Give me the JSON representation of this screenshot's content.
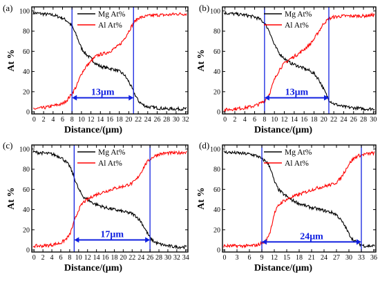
{
  "colors": {
    "mg": "#000000",
    "al": "#ff0000",
    "boundary": "#1020e0",
    "annotation": "#1020e0",
    "frame": "#000000"
  },
  "chart_data": [
    {
      "panel_label": "(a)",
      "type": "line",
      "xlabel": "Distance/(μm)",
      "ylabel": "At %",
      "xlim": [
        -0.5,
        32.5
      ],
      "ylim": [
        -2,
        104
      ],
      "xticks": [
        0,
        2,
        4,
        6,
        8,
        10,
        12,
        14,
        16,
        18,
        20,
        22,
        24,
        26,
        28,
        30,
        32
      ],
      "yticks": [
        0,
        20,
        40,
        60,
        80,
        100
      ],
      "legend": {
        "position": "top-center"
      },
      "boundaries": [
        8,
        21
      ],
      "annotation": {
        "text": "13μm",
        "from": 8,
        "to": 21,
        "y": 14
      },
      "series": [
        {
          "name": "Mg At%",
          "color": "#000000",
          "x": [
            0,
            2,
            4,
            6,
            7,
            8,
            9,
            10,
            11,
            12,
            13,
            14,
            15,
            16,
            17,
            18,
            19,
            20,
            21,
            22,
            23,
            24,
            26,
            28,
            30,
            32
          ],
          "y": [
            98,
            97,
            96,
            93,
            90,
            85,
            75,
            63,
            57,
            53,
            48,
            45,
            44,
            43,
            42,
            40,
            37,
            30,
            20,
            11,
            7,
            5,
            4,
            3,
            3,
            3
          ]
        },
        {
          "name": "Al  At%",
          "color": "#ff0000",
          "x": [
            0,
            2,
            4,
            6,
            7,
            8,
            9,
            10,
            11,
            12,
            13,
            14,
            15,
            16,
            17,
            18,
            19,
            20,
            21,
            22,
            23,
            24,
            26,
            28,
            30,
            32
          ],
          "y": [
            3,
            4,
            6,
            8,
            12,
            18,
            26,
            38,
            45,
            50,
            55,
            57,
            58,
            60,
            63,
            66,
            72,
            80,
            88,
            93,
            94,
            95,
            96,
            96,
            97,
            97
          ]
        }
      ]
    },
    {
      "panel_label": "(b)",
      "type": "line",
      "xlabel": "Distance/(μm)",
      "ylabel": "At %",
      "xlim": [
        -0.5,
        30.5
      ],
      "ylim": [
        -2,
        104
      ],
      "xticks": [
        0,
        2,
        4,
        6,
        8,
        10,
        12,
        14,
        16,
        18,
        20,
        22,
        24,
        26,
        28,
        30
      ],
      "yticks": [
        0,
        20,
        40,
        60,
        80,
        100
      ],
      "legend": {
        "position": "top-center"
      },
      "boundaries": [
        8,
        21
      ],
      "annotation": {
        "text": "13μm",
        "from": 8,
        "to": 21,
        "y": 14
      },
      "series": [
        {
          "name": "Mg At%",
          "color": "#000000",
          "x": [
            0,
            2,
            4,
            6,
            7,
            8,
            9,
            10,
            11,
            12,
            13,
            14,
            15,
            16,
            17,
            18,
            19,
            20,
            21,
            22,
            24,
            26,
            28,
            30
          ],
          "y": [
            98,
            97,
            96,
            94,
            92,
            88,
            80,
            66,
            58,
            53,
            49,
            47,
            45,
            43,
            41,
            38,
            32,
            22,
            12,
            8,
            5,
            4,
            3,
            3
          ]
        },
        {
          "name": "Al  At%",
          "color": "#ff0000",
          "x": [
            0,
            2,
            4,
            6,
            7,
            8,
            9,
            10,
            11,
            12,
            13,
            14,
            15,
            16,
            17,
            18,
            19,
            20,
            21,
            22,
            24,
            26,
            28,
            30
          ],
          "y": [
            2,
            3,
            4,
            6,
            8,
            11,
            18,
            32,
            42,
            48,
            52,
            55,
            58,
            62,
            66,
            72,
            80,
            88,
            92,
            94,
            95,
            95,
            95,
            96
          ]
        }
      ]
    },
    {
      "panel_label": "(c)",
      "type": "line",
      "xlabel": "Distance/(μm)",
      "ylabel": "At %",
      "xlim": [
        -0.5,
        34.5
      ],
      "ylim": [
        -2,
        104
      ],
      "xticks": [
        0,
        2,
        4,
        6,
        8,
        10,
        12,
        14,
        16,
        18,
        20,
        22,
        24,
        26,
        28,
        30,
        32,
        34
      ],
      "yticks": [
        0,
        20,
        40,
        60,
        80,
        100
      ],
      "legend": {
        "position": "top-center"
      },
      "boundaries": [
        9,
        26
      ],
      "annotation": {
        "text": "17μm",
        "from": 9,
        "to": 26,
        "y": 10
      },
      "series": [
        {
          "name": "Mg At%",
          "color": "#000000",
          "x": [
            0,
            2,
            4,
            6,
            7,
            8,
            9,
            10,
            11,
            12,
            13,
            14,
            16,
            18,
            20,
            22,
            23,
            24,
            25,
            26,
            27,
            28,
            30,
            32,
            34
          ],
          "y": [
            97,
            96,
            95,
            92,
            88,
            83,
            72,
            60,
            53,
            50,
            47,
            45,
            42,
            40,
            38,
            36,
            33,
            28,
            20,
            12,
            8,
            6,
            4,
            3,
            3
          ]
        },
        {
          "name": "Al  At%",
          "color": "#ff0000",
          "x": [
            0,
            2,
            4,
            6,
            7,
            8,
            9,
            10,
            11,
            12,
            13,
            14,
            16,
            18,
            20,
            22,
            23,
            24,
            25,
            26,
            27,
            28,
            30,
            32,
            34
          ],
          "y": [
            4,
            4,
            5,
            7,
            10,
            15,
            28,
            40,
            47,
            50,
            53,
            55,
            58,
            61,
            63,
            66,
            70,
            77,
            85,
            90,
            93,
            95,
            96,
            96,
            97
          ]
        }
      ]
    },
    {
      "panel_label": "(d)",
      "type": "line",
      "xlabel": "Distance/(μm)",
      "ylabel": "At %",
      "xlim": [
        -0.5,
        36.5
      ],
      "ylim": [
        -2,
        104
      ],
      "xticks": [
        0,
        3,
        6,
        9,
        12,
        15,
        18,
        21,
        24,
        27,
        30,
        33,
        36
      ],
      "yticks": [
        0,
        20,
        40,
        60,
        80,
        100
      ],
      "legend": {
        "position": "top-center"
      },
      "boundaries": [
        9,
        33
      ],
      "annotation": {
        "text": "24μm",
        "from": 9,
        "to": 33,
        "y": 8
      },
      "series": [
        {
          "name": "Mg At%",
          "color": "#000000",
          "x": [
            0,
            3,
            6,
            8,
            9,
            10,
            11,
            12,
            13,
            14,
            16,
            18,
            20,
            22,
            24,
            26,
            27,
            28,
            29,
            30,
            31,
            32,
            33,
            34,
            36
          ],
          "y": [
            97,
            96,
            95,
            93,
            90,
            88,
            82,
            68,
            60,
            56,
            50,
            46,
            43,
            41,
            39,
            37,
            35,
            30,
            24,
            16,
            10,
            7,
            5,
            4,
            4
          ]
        },
        {
          "name": "Al  At%",
          "color": "#ff0000",
          "x": [
            0,
            3,
            6,
            8,
            9,
            10,
            11,
            12,
            13,
            14,
            16,
            18,
            20,
            22,
            24,
            26,
            27,
            28,
            29,
            30,
            31,
            32,
            33,
            34,
            36
          ],
          "y": [
            4,
            4,
            4,
            5,
            7,
            9,
            18,
            36,
            44,
            48,
            52,
            55,
            58,
            61,
            63,
            65,
            67,
            71,
            78,
            85,
            90,
            93,
            94,
            95,
            96
          ]
        }
      ]
    }
  ]
}
